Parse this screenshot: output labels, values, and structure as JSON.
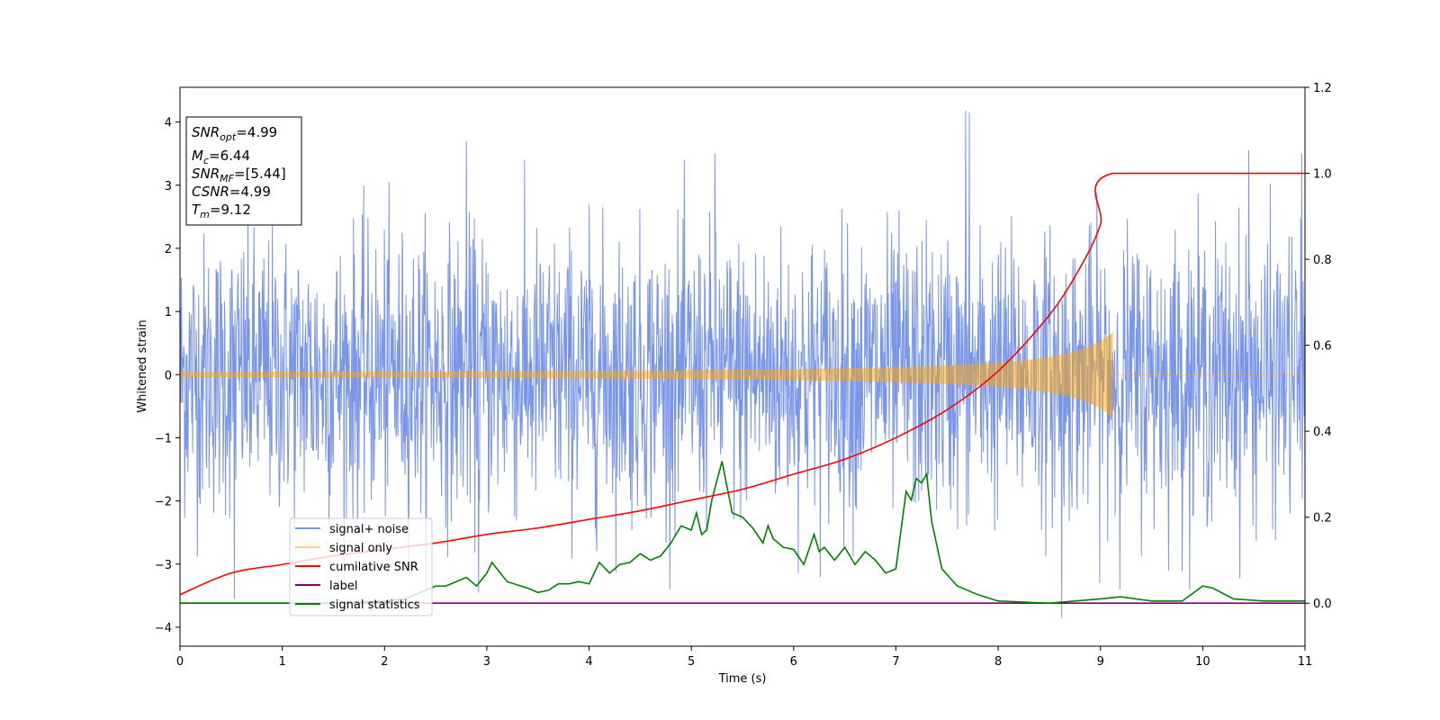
{
  "chart_data": {
    "type": "line",
    "xlabel": "Time (s)",
    "ylabel": "Whitened strain",
    "xlim": [
      0,
      11
    ],
    "ylim": [
      -4.3,
      4.55
    ],
    "y2lim": [
      -0.1,
      1.2
    ],
    "x_ticks": [
      "0",
      "1",
      "2",
      "3",
      "4",
      "5",
      "6",
      "7",
      "8",
      "9",
      "10",
      "11"
    ],
    "y_ticks": [
      "4",
      "3",
      "2",
      "1",
      "0",
      "−1",
      "−2",
      "−3",
      "−4"
    ],
    "y2_ticks": [
      "1.2",
      "1.0",
      "0.8",
      "0.6",
      "0.4",
      "0.2",
      "0.0"
    ],
    "info_box": {
      "snr_opt": {
        "main": "SNR",
        "sub": "opt",
        "value": "=4.99"
      },
      "mc": {
        "main": "M",
        "sub": "c",
        "value": "=6.44"
      },
      "snr_mf": {
        "main": "SNR",
        "sub": "MF",
        "value": "=[5.44]"
      },
      "csnr": {
        "main": "CSNR",
        "value": "=4.99"
      },
      "tm": {
        "main": "T",
        "sub": "m",
        "value": "=9.12"
      }
    },
    "legend_position": "lower-left",
    "series": [
      {
        "name": "signal+ noise",
        "color": "#4169e1",
        "axis": "left",
        "description_values": {
          "typical_range": [
            -2.5,
            2.5
          ],
          "peaks": [
            [
              7.68,
              4.18
            ],
            [
              7.72,
              4.15
            ],
            [
              2.8,
              3.7
            ],
            [
              5.23,
              3.5
            ],
            [
              10.45,
              3.55
            ],
            [
              10.97,
              3.5
            ],
            [
              8.62,
              -3.85
            ],
            [
              0.53,
              -3.55
            ],
            [
              2.92,
              -3.45
            ]
          ]
        }
      },
      {
        "name": "signal only",
        "color": "#ffa500",
        "axis": "left",
        "envelope": {
          "t_end": 9.12,
          "amplitude_at_end": 0.68,
          "amplitude_at_start": 0.02
        }
      },
      {
        "name": "cumilative SNR",
        "color": "#ff0000",
        "axis": "right",
        "x": [
          0,
          0.5,
          1,
          1.5,
          2,
          2.5,
          3,
          3.5,
          4,
          4.5,
          5,
          5.5,
          6,
          6.5,
          7,
          7.5,
          8,
          8.5,
          8.8,
          9.0,
          9.12,
          11
        ],
        "values": [
          0.02,
          0.07,
          0.09,
          0.11,
          0.125,
          0.14,
          0.16,
          0.175,
          0.195,
          0.215,
          0.24,
          0.265,
          0.3,
          0.335,
          0.385,
          0.45,
          0.54,
          0.67,
          0.78,
          0.88,
          1.0,
          1.0
        ]
      },
      {
        "name": "label",
        "color": "#800080",
        "axis": "right",
        "x": [
          0,
          11
        ],
        "values": [
          0.0,
          0.0
        ]
      },
      {
        "name": "signal statistics",
        "color": "#008000",
        "axis": "right",
        "x": [
          0,
          1,
          1.5,
          2,
          2.2,
          2.4,
          2.5,
          2.6,
          2.7,
          2.8,
          2.9,
          3.0,
          3.05,
          3.2,
          3.4,
          3.5,
          3.6,
          3.7,
          3.8,
          3.9,
          4.0,
          4.1,
          4.2,
          4.3,
          4.4,
          4.5,
          4.6,
          4.7,
          4.8,
          4.9,
          5.0,
          5.05,
          5.1,
          5.15,
          5.2,
          5.3,
          5.4,
          5.5,
          5.6,
          5.7,
          5.75,
          5.8,
          5.9,
          6.0,
          6.1,
          6.2,
          6.25,
          6.3,
          6.4,
          6.5,
          6.6,
          6.7,
          6.8,
          6.9,
          7.0,
          7.1,
          7.15,
          7.2,
          7.25,
          7.3,
          7.35,
          7.45,
          7.6,
          7.8,
          8.0,
          8.5,
          9.0,
          9.2,
          9.5,
          9.8,
          10.0,
          10.1,
          10.3,
          10.6,
          11.0
        ],
        "values": [
          0.0,
          0.0,
          0.0,
          0.005,
          0.01,
          0.03,
          0.04,
          0.04,
          0.05,
          0.06,
          0.04,
          0.07,
          0.095,
          0.05,
          0.035,
          0.025,
          0.03,
          0.045,
          0.045,
          0.05,
          0.045,
          0.095,
          0.07,
          0.09,
          0.095,
          0.115,
          0.1,
          0.11,
          0.14,
          0.18,
          0.17,
          0.21,
          0.16,
          0.17,
          0.24,
          0.33,
          0.21,
          0.2,
          0.175,
          0.14,
          0.18,
          0.15,
          0.13,
          0.125,
          0.09,
          0.16,
          0.12,
          0.13,
          0.1,
          0.13,
          0.09,
          0.12,
          0.1,
          0.07,
          0.08,
          0.26,
          0.24,
          0.29,
          0.28,
          0.3,
          0.19,
          0.08,
          0.04,
          0.02,
          0.005,
          0.0,
          0.01,
          0.015,
          0.005,
          0.005,
          0.04,
          0.035,
          0.01,
          0.005,
          0.005
        ]
      }
    ]
  }
}
